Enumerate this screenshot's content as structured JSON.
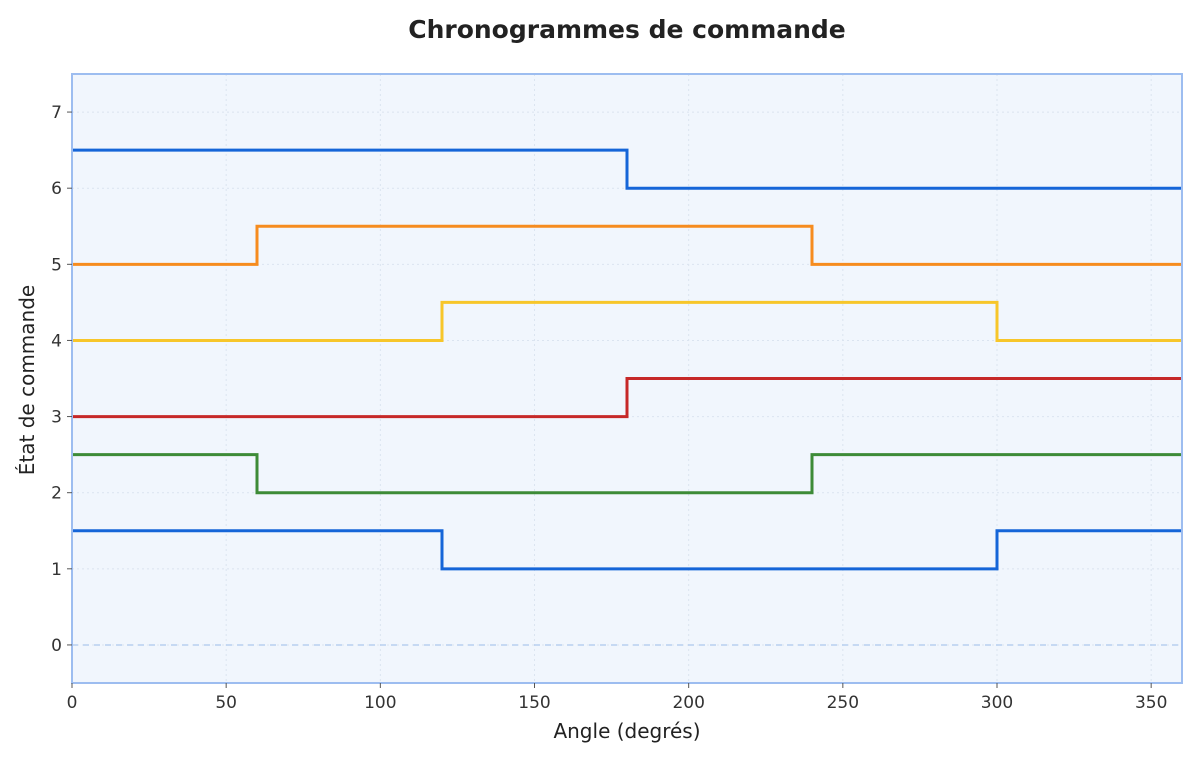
{
  "chart_data": {
    "type": "line",
    "step": "post",
    "title": "Chronogrammes de commande",
    "xlabel": "Angle (degrés)",
    "ylabel": "État de commande",
    "xlim": [
      0,
      360
    ],
    "ylim": [
      -0.5,
      7.5
    ],
    "xticks": [
      0,
      50,
      100,
      150,
      200,
      250,
      300,
      350
    ],
    "yticks": [
      0,
      1,
      2,
      3,
      4,
      5,
      6,
      7
    ],
    "grid": true,
    "background": "#f1f6fd",
    "frame_color": "#9dbdf0",
    "baseline": 0,
    "series": [
      {
        "color": "#1565d8",
        "x": [
          0,
          180,
          360
        ],
        "y": [
          6.5,
          6.0,
          6.0
        ]
      },
      {
        "color": "#f68c1f",
        "x": [
          0,
          60,
          240,
          360
        ],
        "y": [
          5.0,
          5.5,
          5.0,
          5.0
        ]
      },
      {
        "color": "#f7c62a",
        "x": [
          0,
          120,
          300,
          360
        ],
        "y": [
          4.0,
          4.5,
          4.0,
          4.0
        ]
      },
      {
        "color": "#c62828",
        "x": [
          0,
          180,
          360
        ],
        "y": [
          3.0,
          3.5,
          3.5
        ]
      },
      {
        "color": "#3d8b37",
        "x": [
          0,
          60,
          240,
          360
        ],
        "y": [
          2.5,
          2.0,
          2.5,
          2.5
        ]
      },
      {
        "color": "#1565d8",
        "x": [
          0,
          120,
          300,
          360
        ],
        "y": [
          1.5,
          1.0,
          1.5,
          1.5
        ]
      }
    ]
  }
}
